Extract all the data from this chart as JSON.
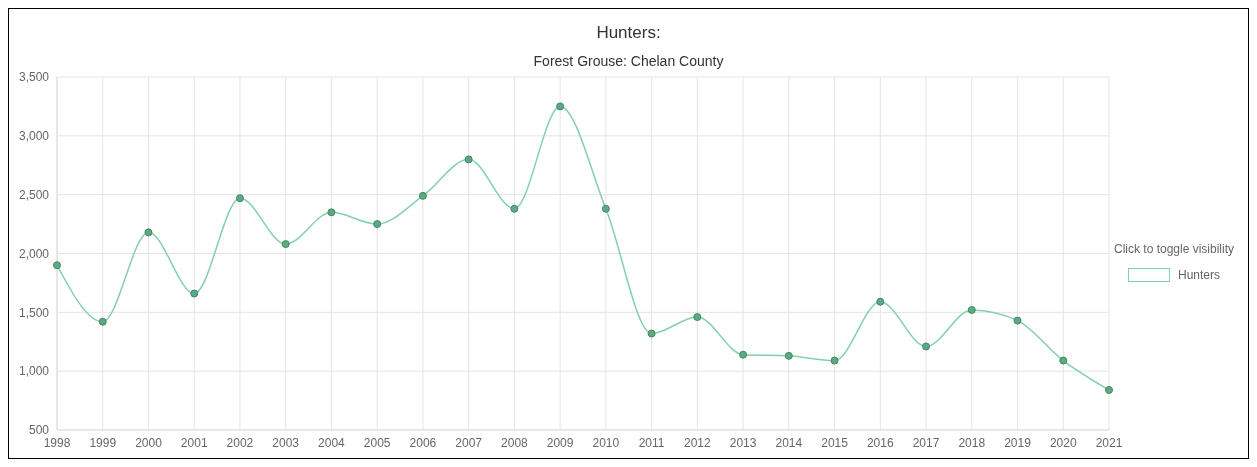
{
  "chart_data": {
    "type": "line",
    "title": "Hunters:",
    "subtitle": "Forest Grouse: Chelan County",
    "legend_title": "Click to toggle visibility",
    "categories": [
      "1998",
      "1999",
      "2000",
      "2001",
      "2002",
      "2003",
      "2004",
      "2005",
      "2006",
      "2007",
      "2008",
      "2009",
      "2010",
      "2011",
      "2012",
      "2013",
      "2014",
      "2015",
      "2016",
      "2017",
      "2018",
      "2019",
      "2020",
      "2021"
    ],
    "series": [
      {
        "name": "Hunters",
        "color": "#82d0ae",
        "values": [
          1900,
          1420,
          2180,
          1660,
          2470,
          2080,
          2350,
          2250,
          2490,
          2800,
          2380,
          3250,
          2380,
          1320,
          1460,
          1140,
          1130,
          1090,
          1590,
          1210,
          1520,
          1430,
          1090,
          840
        ]
      }
    ],
    "ylim": [
      500,
      3500
    ],
    "yticks": [
      500,
      {
        "value": 1000,
        "label": "1,000"
      },
      {
        "value": 1500,
        "label": "1,500"
      },
      {
        "value": 2000,
        "label": "2,000"
      },
      {
        "value": 2500,
        "label": "2,500"
      },
      {
        "value": 3000,
        "label": "3,000"
      },
      {
        "value": 3500,
        "label": "3,500"
      }
    ],
    "grid": true,
    "legend": "right",
    "marker": "circle",
    "line_style": "solid"
  }
}
